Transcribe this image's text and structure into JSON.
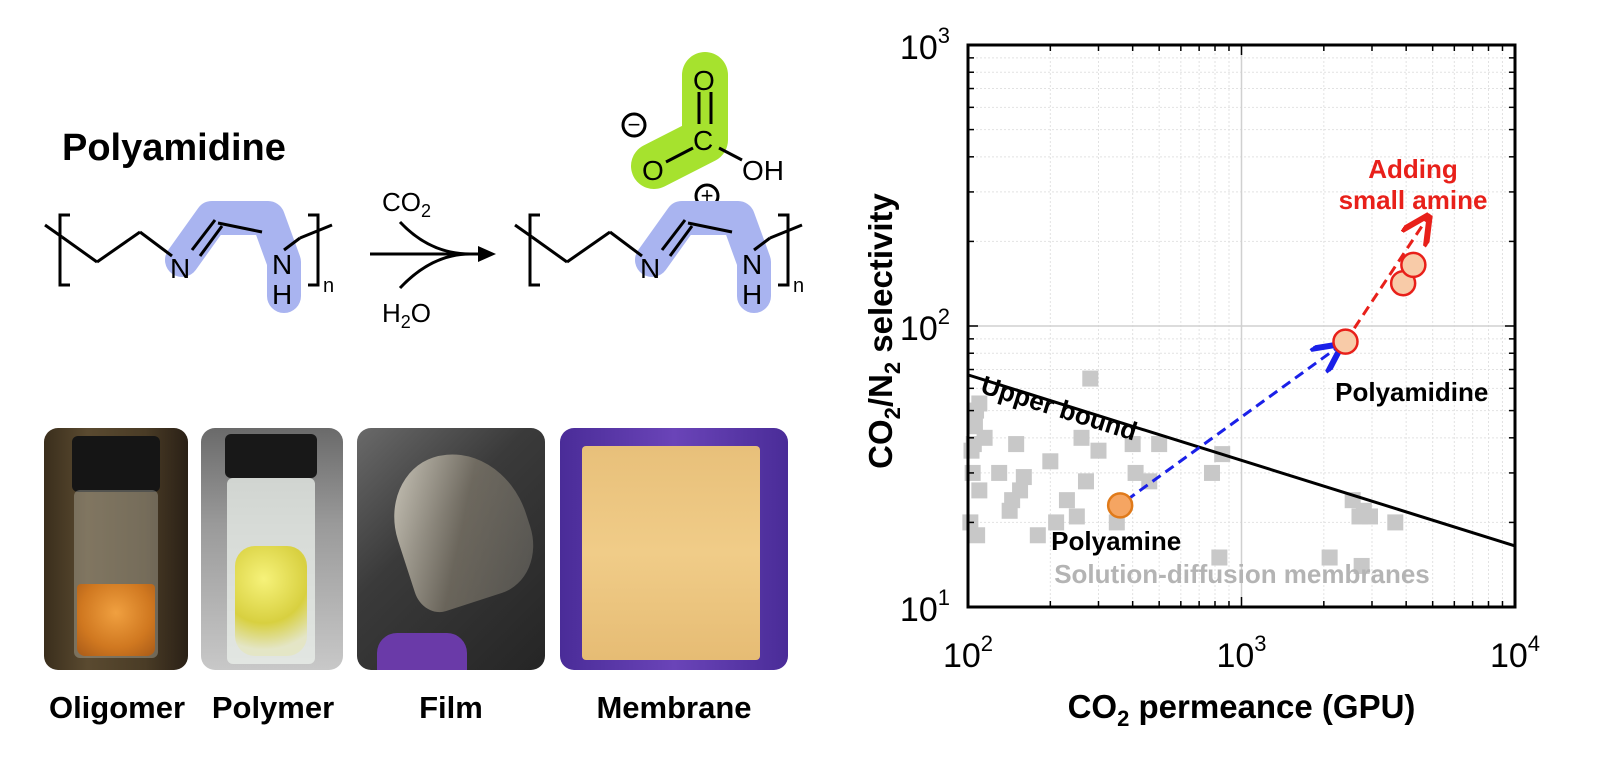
{
  "scheme": {
    "title": "Polyamidine",
    "reagent_top": "CO",
    "reagent_top_sub": "2",
    "reagent_bottom_a": "H",
    "reagent_bottom_sub": "2",
    "reagent_bottom_b": "O",
    "atom_N": "N",
    "atom_NH_N": "N",
    "atom_NH_H": "H",
    "repeat_n": "n",
    "carbonate_O_top": "O",
    "carbonate_C": "C",
    "carbonate_O_left": "O",
    "carbonate_OH": "OH",
    "charge_minus": "−",
    "charge_plus": "+",
    "highlight_color": "#a9b4f0",
    "carbonate_highlight_color": "#a6e22e"
  },
  "photos": [
    {
      "label": "Oligomer"
    },
    {
      "label": "Polymer"
    },
    {
      "label": "Film"
    },
    {
      "label": "Membrane"
    }
  ],
  "chart_data": {
    "type": "scatter",
    "xscale": "log",
    "yscale": "log",
    "xlim": [
      100,
      10000
    ],
    "ylim": [
      10,
      1000
    ],
    "grid": true,
    "xlabel": {
      "a": "CO",
      "sub": "2",
      "b": " permeance (GPU)"
    },
    "ylabel": {
      "a": "CO",
      "sub1": "2",
      "mid": "/N",
      "sub2": "2",
      "b": " selectivity"
    },
    "xticks": [
      {
        "base": "10",
        "exp": "2"
      },
      {
        "base": "10",
        "exp": "3"
      },
      {
        "base": "10",
        "exp": "4"
      }
    ],
    "yticks": [
      {
        "base": "10",
        "exp": "1"
      },
      {
        "base": "10",
        "exp": "2"
      },
      {
        "base": "10",
        "exp": "3"
      }
    ],
    "upper_bound": {
      "label": "Upper bound",
      "points": [
        [
          100,
          67
        ],
        [
          10000,
          16.5
        ]
      ]
    },
    "series": [
      {
        "name": "Solution-diffusion membranes",
        "color": "#c8c8c8",
        "points": [
          [
            102,
            20
          ],
          [
            103,
            36
          ],
          [
            104,
            30
          ],
          [
            105,
            38
          ],
          [
            106,
            44
          ],
          [
            107,
            50
          ],
          [
            110,
            53
          ],
          [
            108,
            18
          ],
          [
            110,
            26
          ],
          [
            115,
            40
          ],
          [
            130,
            30
          ],
          [
            142,
            22
          ],
          [
            145,
            24
          ],
          [
            150,
            38
          ],
          [
            155,
            26
          ],
          [
            160,
            29
          ],
          [
            180,
            18
          ],
          [
            200,
            33
          ],
          [
            210,
            20
          ],
          [
            230,
            24
          ],
          [
            250,
            21
          ],
          [
            260,
            40
          ],
          [
            270,
            28
          ],
          [
            280,
            65
          ],
          [
            300,
            36
          ],
          [
            350,
            20
          ],
          [
            400,
            38
          ],
          [
            410,
            30
          ],
          [
            460,
            28
          ],
          [
            500,
            38
          ],
          [
            780,
            30
          ],
          [
            830,
            15
          ],
          [
            850,
            35
          ],
          [
            2100,
            15
          ],
          [
            2550,
            24
          ],
          [
            2700,
            21
          ],
          [
            2750,
            14
          ],
          [
            2800,
            22
          ],
          [
            2950,
            21
          ],
          [
            3650,
            20
          ]
        ]
      },
      {
        "name": "Polyamine",
        "color": "#f5a562",
        "stroke": "#e07a1a",
        "points": [
          [
            360,
            23
          ]
        ]
      },
      {
        "name": "Polyamidine",
        "color": "#f8cba8",
        "stroke": "#e8201a",
        "points": [
          [
            2400,
            88
          ],
          [
            3900,
            142
          ],
          [
            4250,
            165
          ]
        ]
      }
    ],
    "annotations": [
      {
        "text": "Polyamine",
        "color": "#000000"
      },
      {
        "text": "Polyamidine",
        "color": "#000000"
      },
      {
        "text": "Adding",
        "color": "#e8201a"
      },
      {
        "text": "small amine",
        "color": "#e8201a"
      },
      {
        "text": "Solution-diffusion membranes",
        "color": "#b4b4b4"
      }
    ],
    "arrows": [
      {
        "from": [
          380,
          24
        ],
        "to": [
          2250,
          84
        ],
        "color": "#1a20e8",
        "style": "dashed"
      },
      {
        "from": [
          2400,
          88
        ],
        "to": [
          4750,
          240
        ],
        "color": "#e8201a",
        "style": "dashed"
      }
    ]
  }
}
